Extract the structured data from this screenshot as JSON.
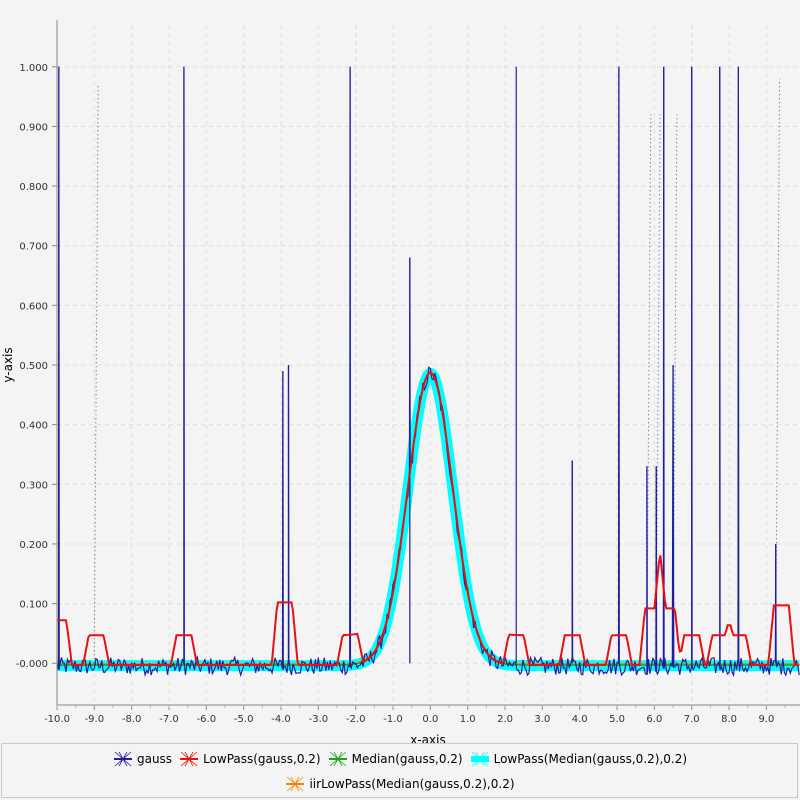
{
  "chart_data": {
    "type": "line",
    "title": "",
    "xlabel": "x-axis",
    "ylabel": "y-axis",
    "xlim": [
      -10.0,
      9.9
    ],
    "ylim": [
      -0.07,
      1.07
    ],
    "xticks": [
      -10,
      -9,
      -8,
      -7,
      -6,
      -5,
      -4,
      -3,
      -2,
      -1,
      0,
      1,
      2,
      3,
      4,
      5,
      6,
      7,
      8,
      9
    ],
    "xtick_labels": [
      "-10.0",
      "-9.0",
      "-8.0",
      "-7.0",
      "-6.0",
      "-5.0",
      "-4.0",
      "-3.0",
      "-2.0",
      "-1.0",
      "0.0",
      "1.0",
      "2.0",
      "3.0",
      "4.0",
      "5.0",
      "6.0",
      "7.0",
      "8.0",
      "9.0"
    ],
    "yticks": [
      0.0,
      0.1,
      0.2,
      0.3,
      0.4,
      0.5,
      0.6,
      0.7,
      0.8,
      0.9,
      1.0
    ],
    "ytick_labels": [
      "-0.000",
      "0.100",
      "0.200",
      "0.300",
      "0.400",
      "0.500",
      "0.600",
      "0.700",
      "0.800",
      "0.900",
      "1.000"
    ],
    "grid": true,
    "gaussian": {
      "amplitude": 0.49,
      "center": 0.0,
      "sigma": 0.6
    },
    "spikes": [
      {
        "x": -9.95,
        "y": 1.0,
        "style": "solid"
      },
      {
        "x": -8.95,
        "y": 0.97,
        "style": "dotted"
      },
      {
        "x": -6.6,
        "y": 1.0,
        "style": "solid"
      },
      {
        "x": -3.95,
        "y": 0.49,
        "style": "solid"
      },
      {
        "x": -3.8,
        "y": 0.5,
        "style": "solid"
      },
      {
        "x": -2.15,
        "y": 1.0,
        "style": "solid"
      },
      {
        "x": -0.55,
        "y": 0.68,
        "style": "solid"
      },
      {
        "x": 2.3,
        "y": 1.0,
        "style": "solid"
      },
      {
        "x": 3.8,
        "y": 0.34,
        "style": "solid"
      },
      {
        "x": 5.05,
        "y": 1.0,
        "style": "solid"
      },
      {
        "x": 5.8,
        "y": 0.33,
        "style": "solid"
      },
      {
        "x": 5.85,
        "y": 0.92,
        "style": "dotted"
      },
      {
        "x": 6.05,
        "y": 0.33,
        "style": "solid"
      },
      {
        "x": 6.1,
        "y": 0.92,
        "style": "dotted"
      },
      {
        "x": 6.25,
        "y": 1.0,
        "style": "solid"
      },
      {
        "x": 6.5,
        "y": 0.5,
        "style": "solid"
      },
      {
        "x": 6.55,
        "y": 0.92,
        "style": "dotted"
      },
      {
        "x": 7.0,
        "y": 1.0,
        "style": "solid"
      },
      {
        "x": 7.75,
        "y": 1.0,
        "style": "solid"
      },
      {
        "x": 8.25,
        "y": 1.0,
        "style": "solid"
      },
      {
        "x": 9.25,
        "y": 0.2,
        "style": "solid"
      },
      {
        "x": 9.3,
        "y": 0.98,
        "style": "dotted"
      }
    ],
    "lowpass_bumps": [
      {
        "x": -9.95,
        "h": 0.075
      },
      {
        "x": -8.95,
        "h": 0.05
      },
      {
        "x": -6.6,
        "h": 0.05
      },
      {
        "x": -3.9,
        "h": 0.105
      },
      {
        "x": -2.15,
        "h": 0.05
      },
      {
        "x": 2.3,
        "h": 0.05
      },
      {
        "x": 3.8,
        "h": 0.05
      },
      {
        "x": 5.05,
        "h": 0.05
      },
      {
        "x": 5.95,
        "h": 0.095
      },
      {
        "x": 6.35,
        "h": 0.095
      },
      {
        "x": 7.0,
        "h": 0.05
      },
      {
        "x": 7.75,
        "h": 0.05
      },
      {
        "x": 8.25,
        "h": 0.05
      },
      {
        "x": 9.4,
        "h": 0.1
      }
    ],
    "series": [
      {
        "name": "gauss",
        "color": "#1f1f9e",
        "marker": "x"
      },
      {
        "name": "LowPass(gauss,0.2)",
        "color": "#e81010",
        "marker": "x"
      },
      {
        "name": "Median(gauss,0.2)",
        "color": "#1ea01e",
        "marker": "x"
      },
      {
        "name": "LowPass(Median(gauss,0.2),0.2)",
        "color": "#00ffff",
        "marker": "x"
      },
      {
        "name": "iirLowPass(Median(gauss,0.2),0.2)",
        "color": "#ff7f00",
        "marker": "x"
      }
    ]
  },
  "legend": {
    "items": [
      {
        "label": "gauss",
        "color": "#1f1f9e"
      },
      {
        "label": "LowPass(gauss,0.2)",
        "color": "#e81010"
      },
      {
        "label": "Median(gauss,0.2)",
        "color": "#1ea01e"
      },
      {
        "label": "LowPass(Median(gauss,0.2),0.2)",
        "color": "#00ffff"
      },
      {
        "label": "iirLowPass(Median(gauss,0.2),0.2)",
        "color": "#ff7f00"
      }
    ]
  }
}
